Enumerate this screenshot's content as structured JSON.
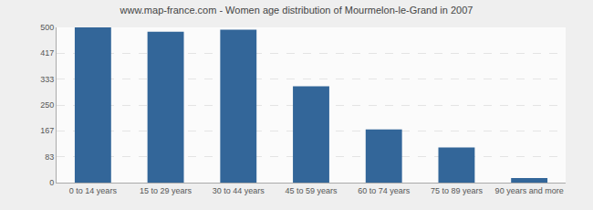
{
  "chart_data": {
    "type": "bar",
    "title": "www.map-france.com - Women age distribution of Mourmelon-le-Grand in 2007",
    "categories": [
      "0 to 14 years",
      "15 to 29 years",
      "30 to 44 years",
      "45 to 59 years",
      "60 to 74 years",
      "75 to 89 years",
      "90 years and more"
    ],
    "values": [
      500,
      486,
      493,
      310,
      171,
      113,
      15
    ],
    "color": "#336699",
    "ylim": [
      0,
      500
    ],
    "yticks": [
      0,
      83,
      167,
      250,
      333,
      417,
      500
    ],
    "grid": true
  }
}
